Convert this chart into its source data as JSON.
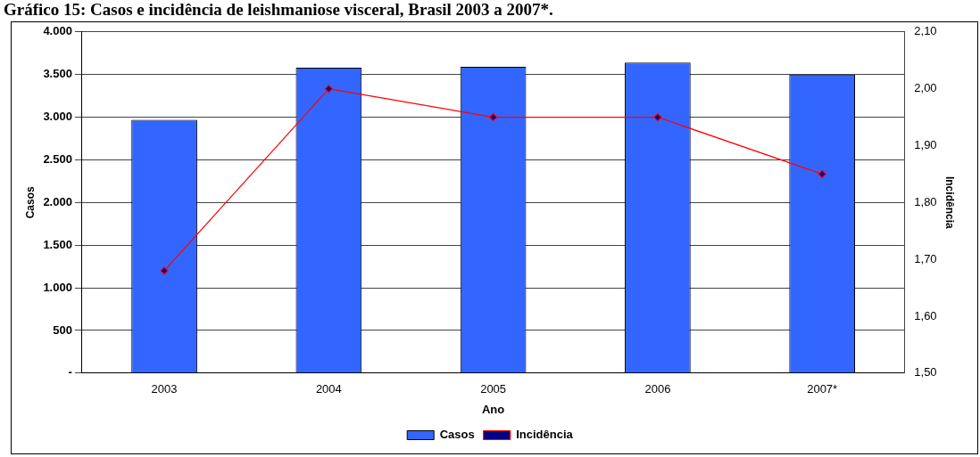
{
  "chart_data": {
    "type": "bar",
    "title": "Gráfico 15: Casos e incidência de leishmaniose visceral, Brasil 2003 a 2007*.",
    "xlabel": "Ano",
    "ylabel": "Casos",
    "y2label": "Incidência",
    "categories": [
      "2003",
      "2004",
      "2005",
      "2006",
      "2007*"
    ],
    "series": [
      {
        "name": "Casos",
        "color": "#3366ff",
        "values": [
          2970,
          3580,
          3590,
          3640,
          3500
        ]
      },
      {
        "name": "Incidência",
        "type": "line",
        "axis": "y2",
        "color": "#ff0000",
        "marker": "diamond",
        "values": [
          1.68,
          2.0,
          1.95,
          1.95,
          1.85
        ]
      }
    ],
    "ylim": [
      0,
      4000
    ],
    "yticks": [
      {
        "value": 0,
        "label": "-"
      },
      {
        "value": 500,
        "label": "500"
      },
      {
        "value": 1000,
        "label": "1.000"
      },
      {
        "value": 1500,
        "label": "1.500"
      },
      {
        "value": 2000,
        "label": "2.000"
      },
      {
        "value": 2500,
        "label": "2.500"
      },
      {
        "value": 3000,
        "label": "3.000"
      },
      {
        "value": 3500,
        "label": "3.500"
      },
      {
        "value": 4000,
        "label": "4.000"
      }
    ],
    "y2lim": [
      1.5,
      2.1
    ],
    "y2ticks": [
      {
        "value": 1.5,
        "label": "1,50"
      },
      {
        "value": 1.6,
        "label": "1,60"
      },
      {
        "value": 1.7,
        "label": "1,70"
      },
      {
        "value": 1.8,
        "label": "1,80"
      },
      {
        "value": 1.9,
        "label": "1,90"
      },
      {
        "value": 2.0,
        "label": "2,00"
      },
      {
        "value": 2.1,
        "label": "2,10"
      }
    ],
    "grid": "y",
    "legend": "bottom"
  }
}
